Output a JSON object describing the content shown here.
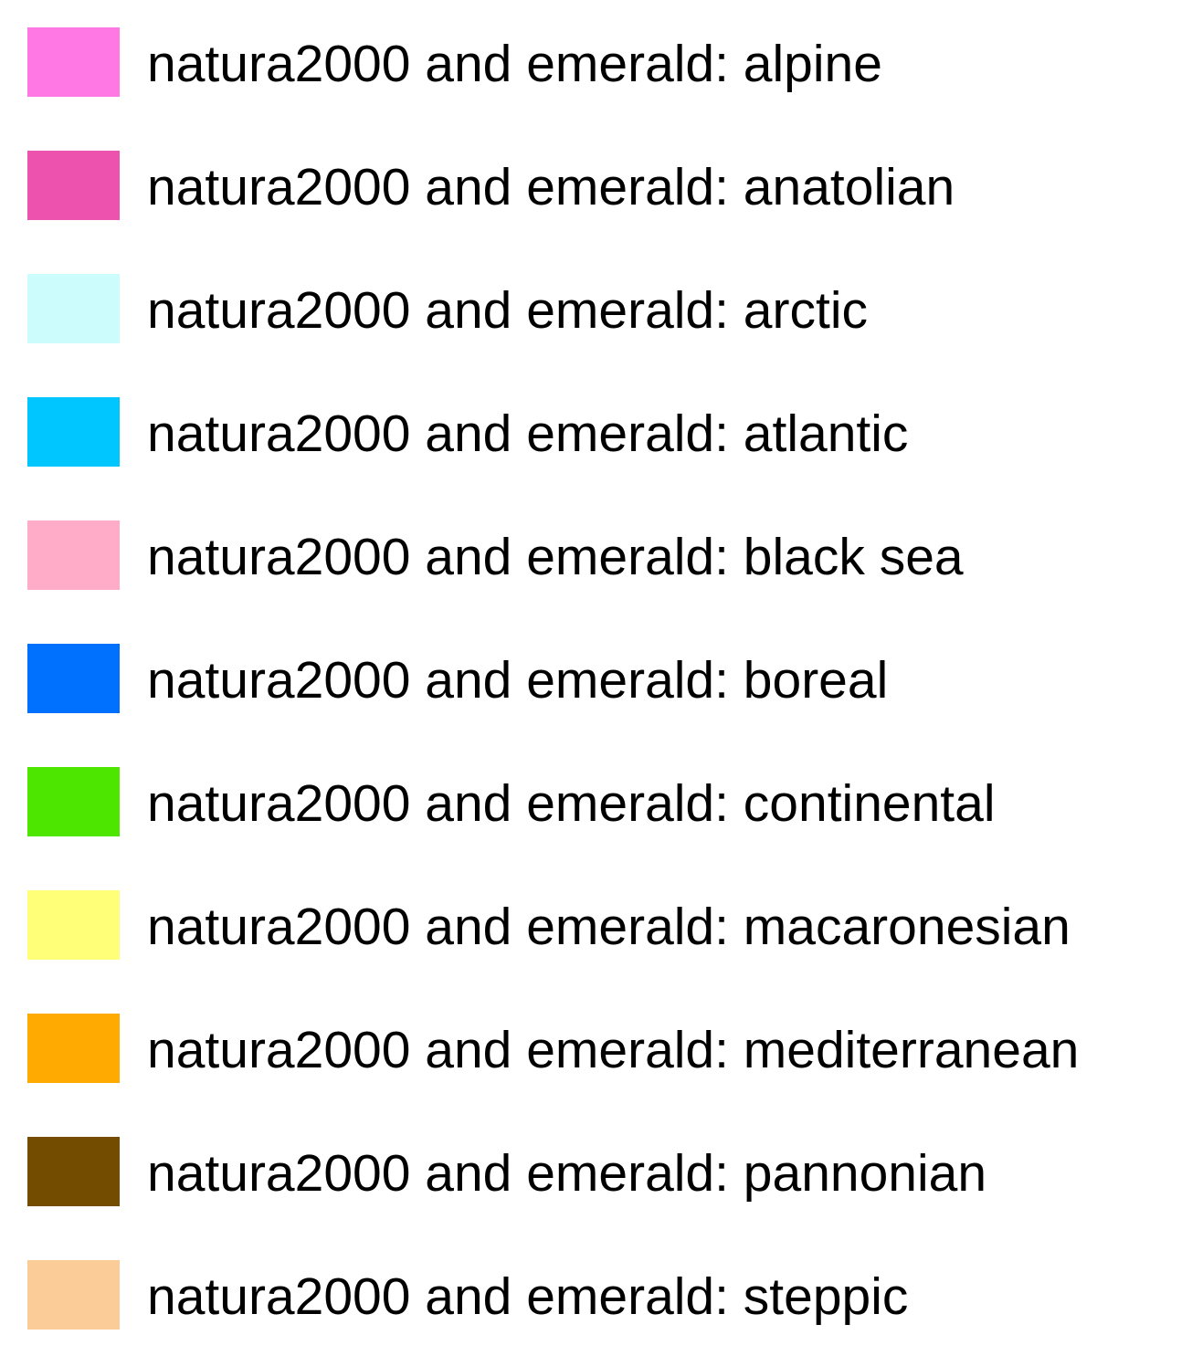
{
  "legend": {
    "items": [
      {
        "label": "natura2000 and emerald: alpine",
        "color": "#ff78e4"
      },
      {
        "label": "natura2000 and emerald: anatolian",
        "color": "#ec52ae"
      },
      {
        "label": "natura2000 and emerald: arctic",
        "color": "#ccfcfc"
      },
      {
        "label": "natura2000 and emerald: atlantic",
        "color": "#00c6ff"
      },
      {
        "label": "natura2000 and emerald: black sea",
        "color": "#ffacc8"
      },
      {
        "label": "natura2000 and emerald: boreal",
        "color": "#0070ff"
      },
      {
        "label": "natura2000 and emerald: continental",
        "color": "#4ce600"
      },
      {
        "label": "natura2000 and emerald: macaronesian",
        "color": "#ffff78"
      },
      {
        "label": "natura2000 and emerald: mediterranean",
        "color": "#ffaa00"
      },
      {
        "label": "natura2000 and emerald: pannonian",
        "color": "#734c00"
      },
      {
        "label": "natura2000 and emerald: steppic",
        "color": "#fccc98"
      }
    ]
  }
}
